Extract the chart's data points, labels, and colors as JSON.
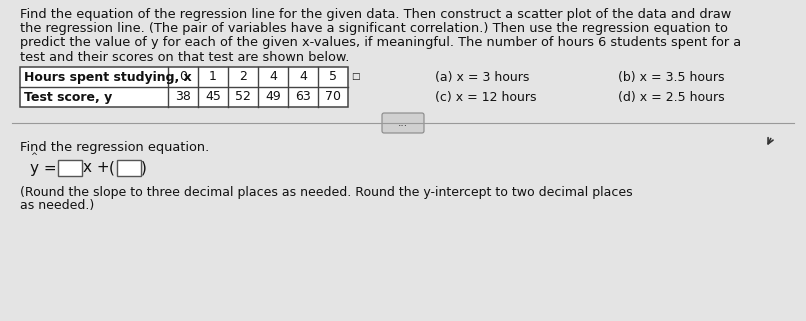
{
  "bg_color": "#e4e4e4",
  "text_color": "#111111",
  "paragraph_lines": [
    "Find the equation of the regression line for the given data. Then construct a scatter plot of the data and draw",
    "the regression line. (The pair of variables have a significant correlation.) Then use the regression equation to",
    "predict the value of y for each of the given x-values, if meaningful. The number of hours 6 students spent for a",
    "test and their scores on that test are shown below."
  ],
  "table_header_label": "Hours spent studying, x",
  "table_data_vals": [
    "0",
    "1",
    "2",
    "4",
    "4",
    "5"
  ],
  "table_score_label": "Test score, y",
  "table_score_vals": [
    "38",
    "45",
    "52",
    "49",
    "63",
    "70"
  ],
  "side_labels_row1": [
    "(a) x = 3 hours",
    "(b) x = 3.5 hours"
  ],
  "side_labels_row2": [
    "(c) x = 12 hours",
    "(d) x = 2.5 hours"
  ],
  "divider_ellipsis": "...",
  "find_eq_text": "Find the regression equation.",
  "round_note_lines": [
    "(Round the slope to three decimal places as needed. Round the y-intercept to two decimal places",
    "as needed.)"
  ],
  "font_size_para": 9.3,
  "font_size_table": 9.0,
  "font_size_side": 9.0,
  "font_size_find": 9.3,
  "font_size_eq": 11.0,
  "font_size_round": 9.0
}
